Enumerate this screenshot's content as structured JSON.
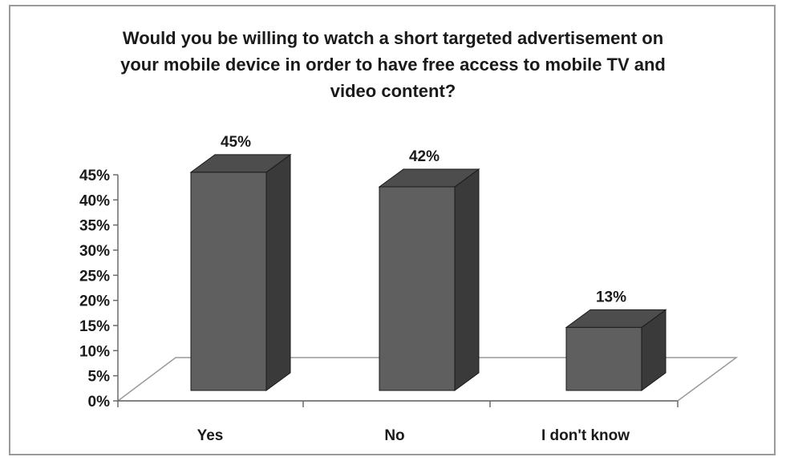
{
  "chart_data": {
    "type": "bar",
    "title": "Would you be willing to watch a short targeted advertisement on your mobile device in order to have free access to mobile TV and video content?",
    "title_lines": [
      "Would you be willing to watch a short targeted advertisement on",
      "your mobile device in order to have free access to mobile TV and",
      "video content?"
    ],
    "categories": [
      "Yes",
      "No",
      "I don't know"
    ],
    "values": [
      45,
      42,
      13
    ],
    "data_labels": [
      "45%",
      "42%",
      "13%"
    ],
    "ylim": [
      0,
      45
    ],
    "yticks": [
      "0%",
      "5%",
      "10%",
      "15%",
      "20%",
      "25%",
      "30%",
      "35%",
      "40%",
      "45%"
    ],
    "xlabel": "",
    "ylabel": "",
    "grid": false,
    "legend": "none",
    "style": "3d",
    "colors": {
      "bar_front": "#5f5f5f",
      "bar_side": "#3a3a3a",
      "bar_top": "#4d4d4d",
      "outline": "#1a1a1a",
      "floor": "#ffffff",
      "floor_edge": "#9a9a9a"
    }
  }
}
